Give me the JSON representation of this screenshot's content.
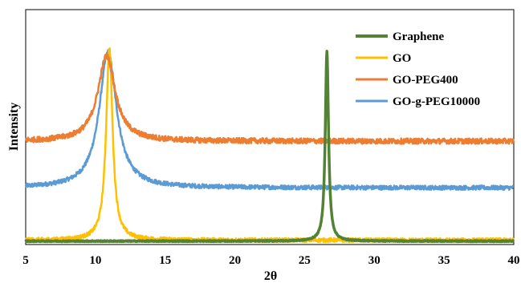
{
  "chart_data": {
    "type": "line",
    "title": "",
    "xlabel": "2θ",
    "ylabel": "Intensity",
    "xlim": [
      5,
      40
    ],
    "xticks": [
      "5",
      "10",
      "15",
      "20",
      "25",
      "30",
      "35",
      "40"
    ],
    "y_tick_labels": false,
    "grid": false,
    "legend_position": "top-right",
    "series": [
      {
        "name": "Graphene",
        "color": "#548235",
        "baseline": 0.5,
        "noise": 0.3,
        "peaks": [
          {
            "center": 26.6,
            "height": 98,
            "width": 0.14
          }
        ]
      },
      {
        "name": "GO",
        "color": "#ffc000",
        "baseline": 1.0,
        "noise": 1.0,
        "peaks": [
          {
            "center": 11.0,
            "height": 99,
            "width": 0.28
          }
        ]
      },
      {
        "name": "GO-PEG400",
        "color": "#ed7d31",
        "baseline": 52,
        "noise": 1.4,
        "peaks": [
          {
            "center": 10.8,
            "height": 44,
            "width": 0.75
          }
        ]
      },
      {
        "name": "GO-g-PEG10000",
        "color": "#5b9bd5",
        "baseline": 28,
        "noise": 1.1,
        "peaks": [
          {
            "center": 10.9,
            "height": 70,
            "width": 0.75
          }
        ]
      }
    ]
  }
}
